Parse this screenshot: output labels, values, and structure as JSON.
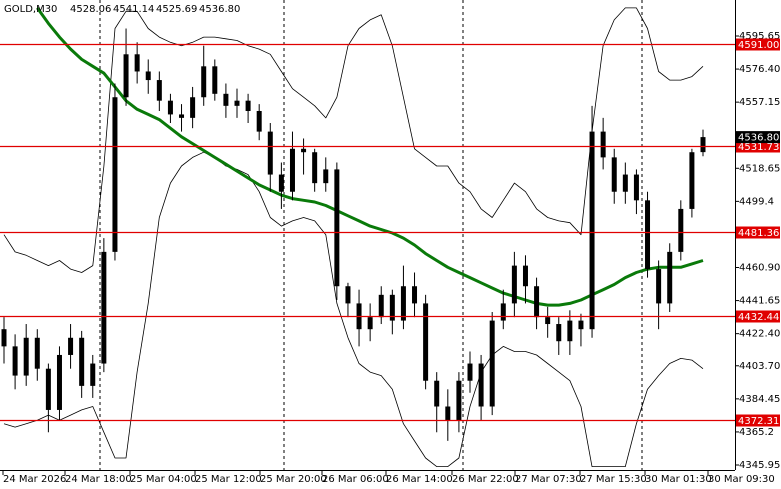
{
  "chart_data": {
    "type": "candlestick",
    "title": "GOLD,M30",
    "title_values": [
      "4528.06",
      "4541.14",
      "4525.69",
      "4536.80"
    ],
    "open": [
      4425,
      4415,
      4398,
      4420,
      4402,
      4378,
      4410,
      4420,
      4392,
      4405,
      4470,
      4560,
      4585,
      4575,
      4570,
      4558,
      4550,
      4548,
      4560,
      4578,
      4562,
      4555,
      4558,
      4552,
      4540,
      4515,
      4505,
      4530,
      4528,
      4510,
      4518,
      4450,
      4440,
      4425,
      4432,
      4445,
      4430,
      4450,
      4440,
      4395,
      4380,
      4372,
      4395,
      4405,
      4380,
      4430,
      4440,
      4462,
      4450,
      4432,
      4428,
      4418,
      4430,
      4425,
      4540,
      4525,
      4505,
      4515,
      4500,
      4460,
      4440,
      4470,
      4495,
      4528.06
    ],
    "high": [
      4432,
      4422,
      4428,
      4425,
      4405,
      4415,
      4428,
      4424,
      4410,
      4478,
      4568,
      4600,
      4592,
      4582,
      4575,
      4562,
      4556,
      4566,
      4590,
      4582,
      4568,
      4565,
      4562,
      4556,
      4545,
      4522,
      4540,
      4536,
      4530,
      4525,
      4522,
      4452,
      4448,
      4440,
      4450,
      4448,
      4462,
      4458,
      4445,
      4400,
      4390,
      4400,
      4412,
      4410,
      4435,
      4448,
      4470,
      4468,
      4455,
      4438,
      4432,
      4436,
      4434,
      4555,
      4548,
      4530,
      4522,
      4518,
      4505,
      4465,
      4475,
      4500,
      4530,
      4541.14
    ],
    "low": [
      4405,
      4390,
      4392,
      4395,
      4365,
      4372,
      4402,
      4385,
      4385,
      4400,
      4465,
      4555,
      4568,
      4562,
      4552,
      4545,
      4540,
      4542,
      4555,
      4558,
      4548,
      4548,
      4545,
      4535,
      4505,
      4495,
      4500,
      4515,
      4505,
      4505,
      4442,
      4432,
      4415,
      4418,
      4428,
      4422,
      4425,
      4432,
      4390,
      4365,
      4360,
      4365,
      4388,
      4372,
      4375,
      4425,
      4432,
      4440,
      4425,
      4420,
      4410,
      4410,
      4415,
      4420,
      4518,
      4498,
      4498,
      4492,
      4455,
      4425,
      4435,
      4465,
      4490,
      4525.69
    ],
    "close": [
      4415,
      4398,
      4420,
      4402,
      4378,
      4410,
      4420,
      4392,
      4405,
      4470,
      4560,
      4585,
      4575,
      4570,
      4558,
      4550,
      4548,
      4560,
      4578,
      4562,
      4555,
      4558,
      4552,
      4540,
      4515,
      4505,
      4530,
      4528,
      4510,
      4518,
      4450,
      4440,
      4425,
      4432,
      4445,
      4430,
      4450,
      4440,
      4395,
      4380,
      4372,
      4395,
      4405,
      4380,
      4430,
      4440,
      4462,
      4450,
      4432,
      4428,
      4418,
      4430,
      4425,
      4540,
      4525,
      4505,
      4515,
      4500,
      4460,
      4440,
      4470,
      4495,
      4528,
      4536.8
    ],
    "candle_color": "#000000",
    "indicators": [
      {
        "color": "#000000",
        "width": 0.8,
        "values": [
          4480,
          4470,
          4468,
          4465,
          4462,
          4465,
          4460,
          4458,
          4462,
          4520,
          4600,
          4610,
          4610,
          4600,
          4595,
          4592,
          4590,
          4592,
          4595,
          4595,
          4594,
          4593,
          4590,
          4588,
          4585,
          4575,
          4565,
          4560,
          4555,
          4548,
          4560,
          4590,
          4600,
          4605,
          4608,
          4590,
          4560,
          4530,
          4525,
          4520,
          4520,
          4510,
          4505,
          4495,
          4490,
          4500,
          4510,
          4505,
          4495,
          4490,
          4488,
          4487,
          4480,
          4540,
          4590,
          4605,
          4612,
          4612,
          4600,
          4575,
          4570,
          4570,
          4572,
          4578
        ]
      },
      {
        "color": "#000000",
        "width": 0.8,
        "values": [
          4370,
          4368,
          4370,
          4372,
          4375,
          4372,
          4375,
          4378,
          4380,
          4365,
          4350,
          4350,
          4400,
          4440,
          4490,
          4510,
          4520,
          4525,
          4528,
          4525,
          4520,
          4518,
          4515,
          4505,
          4490,
          4485,
          4488,
          4490,
          4488,
          4480,
          4440,
          4420,
          4405,
          4400,
          4398,
          4390,
          4370,
          4360,
          4350,
          4345,
          4345,
          4350,
          4380,
          4400,
          4410,
          4415,
          4412,
          4412,
          4410,
          4405,
          4400,
          4395,
          4380,
          4345,
          4345,
          4345,
          4345,
          4370,
          4390,
          4398,
          4405,
          4408,
          4407,
          4402
        ]
      },
      {
        "color": "#0a7a0a",
        "width": 3,
        "values": [
          null,
          null,
          null,
          4612,
          4603,
          4595,
          4588,
          4582,
          4578,
          4574,
          4566,
          4558,
          4553,
          4550,
          4547,
          4542,
          4537,
          4533,
          4529,
          4525,
          4521,
          4517,
          4513,
          4509,
          4506,
          4503,
          4501,
          4500,
          4499,
          4497,
          4494,
          4491,
          4488,
          4485,
          4483,
          4481,
          4478,
          4474,
          4469,
          4465,
          4461,
          4458,
          4455,
          4452,
          4449,
          4446,
          4444,
          4442,
          4440,
          4439,
          4439,
          4440,
          4442,
          4445,
          4448,
          4451,
          4455,
          4458,
          4460,
          4461,
          4461,
          4461,
          4463,
          4465
        ]
      }
    ],
    "levels": [
      {
        "value": 4591,
        "label": "4591.00"
      },
      {
        "value": 4531.73,
        "label": "4531.73"
      },
      {
        "value": 4481.36,
        "label": "4481.36"
      },
      {
        "value": 4432.44,
        "label": "4432.44"
      },
      {
        "value": 4372.31,
        "label": "4372.31"
      }
    ],
    "level_color": "#e00000",
    "price": {
      "value": 4536.8,
      "label": "4536.80"
    },
    "ylim": [
      4343.04,
      4616.6
    ],
    "yticks": [
      4345.95,
      4365.2,
      4384.45,
      {
        "value": 4403.7,
        "label": "4403.70"
      },
      {
        "value": 4422.4,
        "label": "4422.40"
      },
      4441.65,
      {
        "value": 4460.9,
        "label": "4460.90"
      },
      4499.4,
      4518.65,
      4557.15,
      {
        "value": 4576.4,
        "label": "4576.40"
      },
      4595.65
    ],
    "xtick_labels": [
      "24 Mar 2026",
      "24 Mar 18:00",
      "25 Mar 04:00",
      "25 Mar 12:00",
      "25 Mar 20:00",
      "26 Mar 06:00",
      "26 Mar 14:00",
      "26 Mar 22:00",
      "27 Mar 07:30",
      "27 Mar 15:30",
      "30 Mar 01:30",
      "30 Mar 09:30"
    ]
  }
}
